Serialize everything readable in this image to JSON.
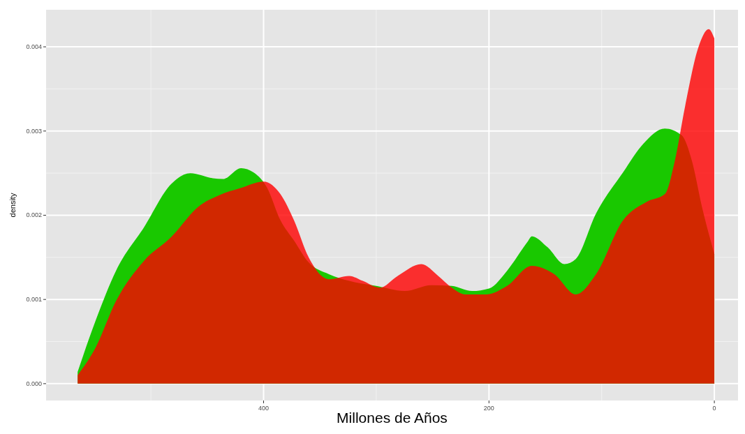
{
  "chart_data": {
    "type": "area",
    "xlabel": "Millones de Años",
    "ylabel": "density",
    "xlim": [
      593,
      -21
    ],
    "ylim": [
      -0.0002,
      0.00444
    ],
    "xticks": [
      400,
      200,
      0
    ],
    "yticks": [
      {
        "value": 0,
        "label": "0.000"
      },
      {
        "value": 0.001,
        "label": "0.001"
      },
      {
        "value": 0.002,
        "label": "0.002"
      },
      {
        "value": 0.003,
        "label": "0.003"
      },
      {
        "value": 0.004,
        "label": "0.004"
      }
    ],
    "grid": true,
    "series": [
      {
        "color": "#19c800",
        "x": [
          565,
          549,
          531,
          506,
          482,
          465,
          445,
          436,
          420,
          409,
          397,
          385,
          373,
          360,
          342,
          324,
          300,
          275,
          251,
          233,
          215,
          200,
          184,
          166,
          162,
          148,
          133,
          123,
          105,
          81,
          63,
          44,
          29,
          20,
          11,
          0
        ],
        "values": [
          0.00014,
          0.00075,
          0.00134,
          0.00186,
          0.00237,
          0.0025,
          0.00244,
          0.00243,
          0.00256,
          0.00251,
          0.00233,
          0.00194,
          0.0017,
          0.00144,
          0.0013,
          0.00122,
          0.00116,
          0.0011,
          0.00117,
          0.00116,
          0.0011,
          0.00113,
          0.00134,
          0.00168,
          0.00175,
          0.00162,
          0.00142,
          0.00148,
          0.00202,
          0.00251,
          0.00285,
          0.00303,
          0.00295,
          0.00265,
          0.0021,
          0.00154
        ]
      },
      {
        "color": "#ff0000",
        "x": [
          565,
          549,
          531,
          506,
          482,
          458,
          439,
          421,
          400,
          385,
          373,
          360,
          342,
          324,
          312,
          297,
          281,
          260,
          245,
          233,
          221,
          202,
          184,
          162,
          142,
          123,
          105,
          81,
          60,
          44,
          35,
          26,
          14,
          5,
          0
        ],
        "values": [
          0.0001,
          0.00043,
          0.00098,
          0.00146,
          0.00174,
          0.0021,
          0.00224,
          0.00232,
          0.0024,
          0.00225,
          0.00194,
          0.0015,
          0.00124,
          0.00128,
          0.00122,
          0.00114,
          0.00128,
          0.00142,
          0.00128,
          0.00114,
          0.00106,
          0.00106,
          0.00116,
          0.0014,
          0.0013,
          0.00106,
          0.0013,
          0.00194,
          0.00216,
          0.00225,
          0.00265,
          0.00329,
          0.004,
          0.00421,
          0.0041
        ]
      }
    ]
  }
}
